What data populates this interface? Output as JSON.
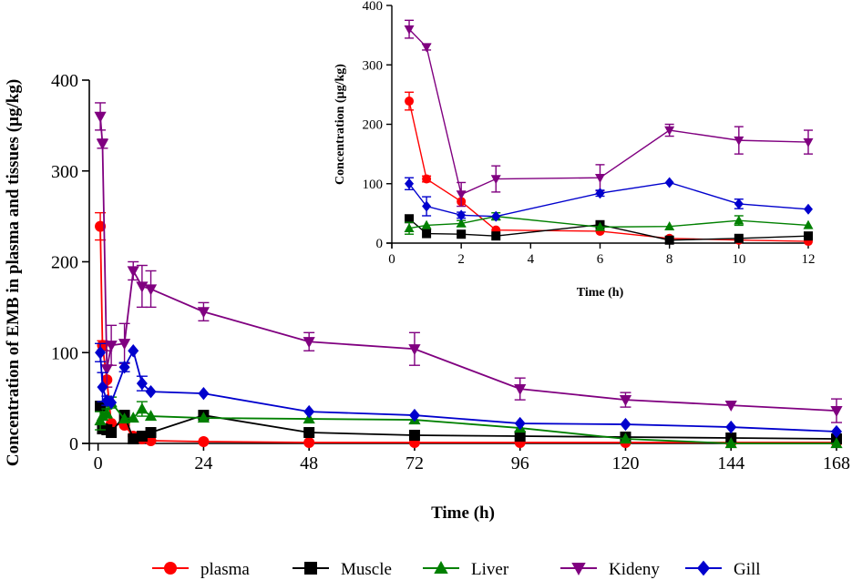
{
  "chart_data": [
    {
      "id": "main",
      "type": "line",
      "title": "",
      "xlabel": "Time (h)",
      "ylabel": "Concentration of EMB in plasma and tissues (µg/kg)",
      "xlim": [
        -2,
        168
      ],
      "ylim": [
        0,
        400
      ],
      "xticks": [
        0,
        24,
        48,
        72,
        96,
        120,
        144,
        168
      ],
      "yticks": [
        0,
        100,
        200,
        300,
        400
      ],
      "x": [
        0.5,
        1,
        2,
        3,
        6,
        8,
        10,
        12,
        24,
        48,
        72,
        96,
        120,
        144,
        168
      ],
      "series": [
        {
          "name": "plasma",
          "color": "#ff0000",
          "marker": "circle",
          "values": [
            239,
            108,
            70,
            22,
            20,
            8,
            5,
            3,
            2,
            1,
            1,
            1,
            1,
            1,
            1
          ],
          "errors": [
            15,
            5,
            0,
            0,
            0,
            0,
            0,
            0,
            0,
            0,
            0,
            0,
            0,
            0,
            0
          ]
        },
        {
          "name": "Muscle",
          "color": "#000000",
          "marker": "square",
          "values": [
            41,
            16,
            15,
            12,
            31,
            5,
            8,
            12,
            31,
            12,
            9,
            8,
            7,
            6,
            5
          ],
          "errors": [
            0,
            0,
            0,
            0,
            0,
            0,
            0,
            0,
            0,
            0,
            0,
            0,
            0,
            0,
            0
          ]
        },
        {
          "name": "Liver",
          "color": "#008000",
          "marker": "triangle-up",
          "values": [
            25,
            30,
            33,
            45,
            27,
            28,
            38,
            30,
            28,
            27,
            26,
            17,
            5,
            0,
            0
          ],
          "errors": [
            10,
            0,
            5,
            6,
            0,
            0,
            8,
            0,
            0,
            0,
            0,
            0,
            0,
            0,
            0
          ]
        },
        {
          "name": "Kideny",
          "color": "#800080",
          "marker": "triangle-down",
          "values": [
            360,
            330,
            82,
            108,
            110,
            190,
            173,
            170,
            145,
            112,
            104,
            60,
            48,
            42,
            36
          ],
          "errors": [
            15,
            5,
            20,
            22,
            22,
            10,
            23,
            20,
            10,
            10,
            18,
            12,
            8,
            0,
            13
          ]
        },
        {
          "name": "Gill",
          "color": "#0000cd",
          "marker": "diamond",
          "values": [
            100,
            62,
            47,
            45,
            84,
            102,
            66,
            57,
            55,
            35,
            31,
            22,
            21,
            18,
            13
          ],
          "errors": [
            10,
            16,
            5,
            0,
            5,
            0,
            8,
            0,
            0,
            0,
            0,
            0,
            0,
            0,
            0
          ]
        }
      ]
    },
    {
      "id": "inset",
      "type": "line",
      "title": "",
      "xlabel": "Time (h)",
      "ylabel": "Concentration (µg/kg)",
      "xlim": [
        0,
        12
      ],
      "ylim": [
        0,
        400
      ],
      "xticks": [
        0,
        2,
        4,
        6,
        8,
        10,
        12
      ],
      "yticks": [
        0,
        100,
        200,
        300,
        400
      ],
      "x": [
        0.5,
        1,
        2,
        3,
        6,
        8,
        10,
        12
      ],
      "series": [
        {
          "name": "plasma",
          "color": "#ff0000",
          "marker": "circle",
          "values": [
            239,
            108,
            70,
            22,
            20,
            8,
            5,
            3
          ],
          "errors": [
            15,
            5,
            0,
            0,
            0,
            0,
            0,
            0
          ]
        },
        {
          "name": "Muscle",
          "color": "#000000",
          "marker": "square",
          "values": [
            41,
            16,
            15,
            12,
            31,
            5,
            8,
            12
          ],
          "errors": [
            0,
            0,
            0,
            0,
            0,
            0,
            0,
            0
          ]
        },
        {
          "name": "Liver",
          "color": "#008000",
          "marker": "triangle-up",
          "values": [
            25,
            30,
            33,
            45,
            27,
            28,
            38,
            30
          ],
          "errors": [
            10,
            0,
            5,
            6,
            0,
            0,
            8,
            0
          ]
        },
        {
          "name": "Kideny",
          "color": "#800080",
          "marker": "triangle-down",
          "values": [
            360,
            330,
            82,
            108,
            110,
            190,
            173,
            170
          ],
          "errors": [
            15,
            5,
            20,
            22,
            22,
            10,
            23,
            20
          ]
        },
        {
          "name": "Gill",
          "color": "#0000cd",
          "marker": "diamond",
          "values": [
            100,
            62,
            47,
            45,
            84,
            102,
            66,
            57
          ],
          "errors": [
            10,
            16,
            5,
            0,
            5,
            0,
            8,
            0
          ]
        }
      ]
    }
  ],
  "legend": {
    "placement": "bottom",
    "items": [
      {
        "label": "plasma",
        "color": "#ff0000",
        "marker": "circle"
      },
      {
        "label": "Muscle",
        "color": "#000000",
        "marker": "square"
      },
      {
        "label": "Liver",
        "color": "#008000",
        "marker": "triangle-up"
      },
      {
        "label": "Kideny",
        "color": "#800080",
        "marker": "triangle-down"
      },
      {
        "label": "Gill",
        "color": "#0000cd",
        "marker": "diamond"
      }
    ]
  }
}
